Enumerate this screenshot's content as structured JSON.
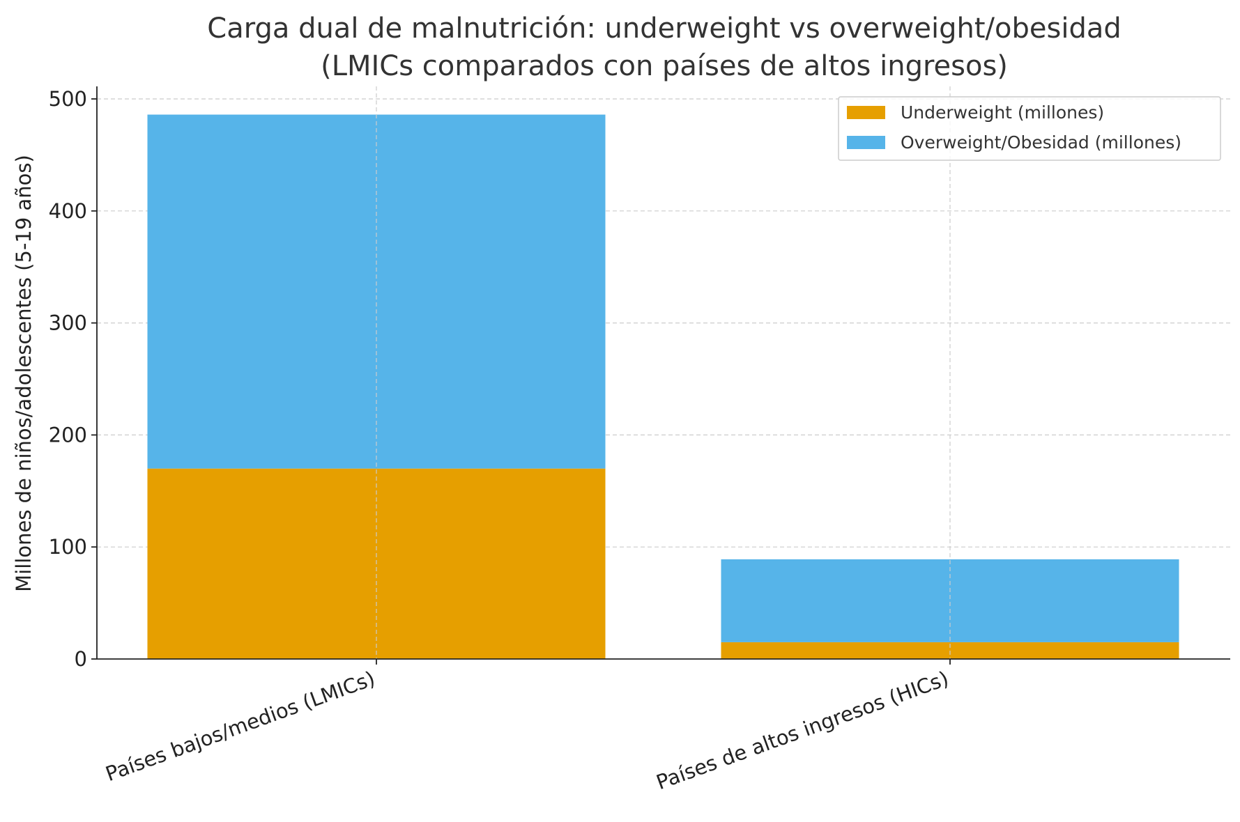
{
  "chart_data": {
    "type": "bar",
    "stacked": true,
    "title": "Carga dual de malnutrición: underweight vs overweight/obesidad",
    "subtitle": "(LMICs comparados con países de altos ingresos)",
    "xlabel": "",
    "ylabel": "Millones de niños/adolescentes (5-19 años)",
    "ylim": [
      0,
      510
    ],
    "yticks": [
      0,
      100,
      200,
      300,
      400,
      500
    ],
    "categories": [
      "Países bajos/medios (LMICs)",
      "Países de altos ingresos (HICs)"
    ],
    "series": [
      {
        "name": "Underweight (millones)",
        "values": [
          170,
          15
        ],
        "color": "#E69F00"
      },
      {
        "name": "Overweight/Obesidad (millones)",
        "values": [
          316,
          74
        ],
        "color": "#56B4E9"
      }
    ],
    "grid": true,
    "legend_position": "top-right"
  }
}
